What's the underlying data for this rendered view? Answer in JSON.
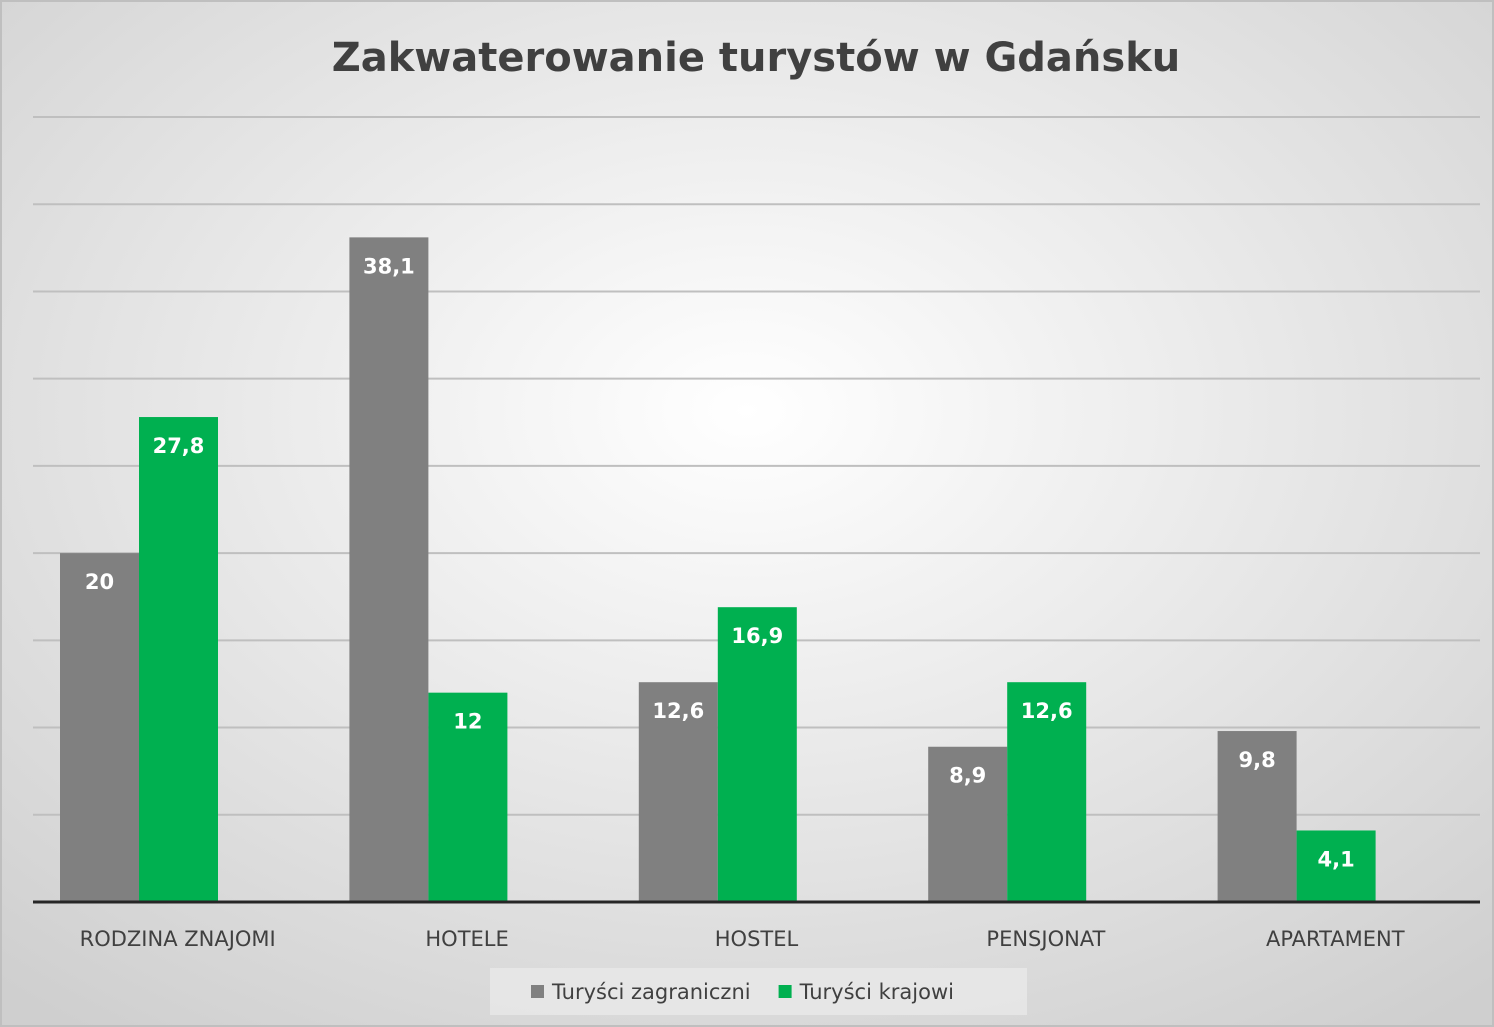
{
  "chart_data": {
    "type": "bar",
    "title": "Zakwaterowanie turystów w Gdańsku",
    "categories": [
      "RODZINA ZNAJOMI",
      "HOTELE",
      "HOSTEL",
      "PENSJONAT",
      "APARTAMENT"
    ],
    "series": [
      {
        "name": "Turyści zagraniczni",
        "color": "#808080",
        "values": [
          20,
          38.1,
          12.6,
          8.9,
          9.8
        ],
        "value_labels": [
          "20",
          "38,1",
          "12,6",
          "8,9",
          "9,8"
        ]
      },
      {
        "name": "Turyści krajowi",
        "color": "#00b050",
        "values": [
          27.8,
          12,
          16.9,
          12.6,
          4.1
        ],
        "value_labels": [
          "27,8",
          "12",
          "16,9",
          "12,6",
          "4,1"
        ]
      }
    ],
    "ylim": [
      0,
      45
    ],
    "yticks": [
      0,
      5,
      10,
      15,
      20,
      25,
      30,
      35,
      40,
      45
    ],
    "grid": true,
    "legend": "bottom"
  }
}
